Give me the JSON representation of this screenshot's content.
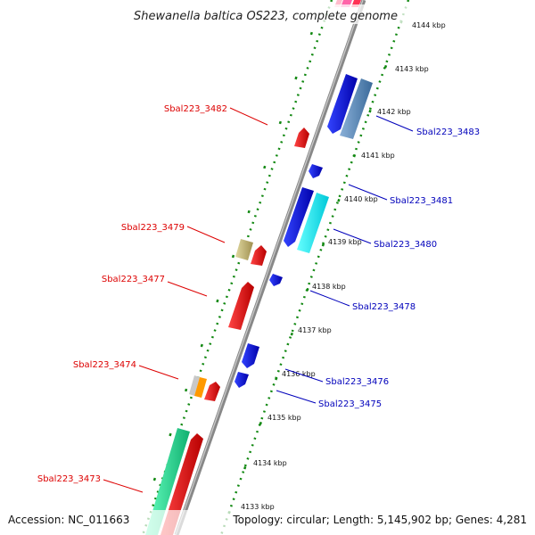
{
  "title": "Shewanella baltica OS223, complete genome",
  "footer": {
    "accession": "Accession: NC_011663",
    "summary": "Topology: circular; Length: 5,145,902 bp; Genes: 4,281"
  },
  "ticks": [
    "4144 kbp",
    "4143 kbp",
    "4142 kbp",
    "4141 kbp",
    "4140 kbp",
    "4139 kbp",
    "4138 kbp",
    "4137 kbp",
    "4136 kbp",
    "4135 kbp",
    "4134 kbp",
    "4133 kbp"
  ],
  "labels_left": [
    "Sbal223_3482",
    "Sbal223_3479",
    "Sbal223_3477",
    "Sbal223_3474",
    "Sbal223_3473"
  ],
  "labels_right": [
    "Sbal223_3483",
    "Sbal223_3481",
    "Sbal223_3480",
    "Sbal223_3478",
    "Sbal223_3476",
    "Sbal223_3475"
  ],
  "colors": {
    "forward_label": "#dd0000",
    "reverse_label": "#0000bb",
    "backbone": "#8a8a8a",
    "dotted_track": "#118811"
  }
}
